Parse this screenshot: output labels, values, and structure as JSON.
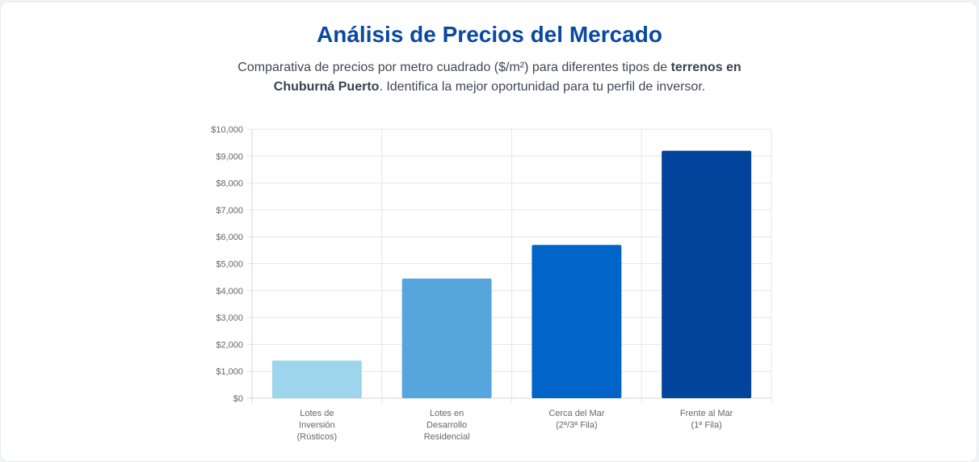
{
  "header": {
    "title": "Análisis de Precios del Mercado",
    "subtitle_pre": "Comparativa de precios por metro cuadrado ($/m²) para diferentes tipos de ",
    "subtitle_bold": "terrenos en Chuburná Puerto",
    "subtitle_post": ". Identifica la mejor oportunidad para tu perfil de inversor."
  },
  "chart_data": {
    "type": "bar",
    "categories": [
      [
        "Lotes de",
        "Inversión",
        "(Rústicos)"
      ],
      [
        "Lotes en",
        "Desarrollo",
        "Residencial"
      ],
      [
        "Cerca del Mar",
        "(2ª/3ª Fila)"
      ],
      [
        "Frente al Mar",
        "(1ª Fila)"
      ]
    ],
    "values": [
      1400,
      4450,
      5700,
      9200
    ],
    "colors": [
      "#9dd5ec",
      "#56a6dd",
      "#0064c8",
      "#02449b"
    ],
    "ylim": [
      0,
      10000
    ],
    "yticks": [
      0,
      1000,
      2000,
      3000,
      4000,
      5000,
      6000,
      7000,
      8000,
      9000,
      10000
    ],
    "ytick_labels": [
      "$0",
      "$1,000",
      "$2,000",
      "$3,000",
      "$4,000",
      "$5,000",
      "$6,000",
      "$7,000",
      "$8,000",
      "$9,000",
      "$10,000"
    ],
    "grid": true,
    "legend": "none"
  }
}
